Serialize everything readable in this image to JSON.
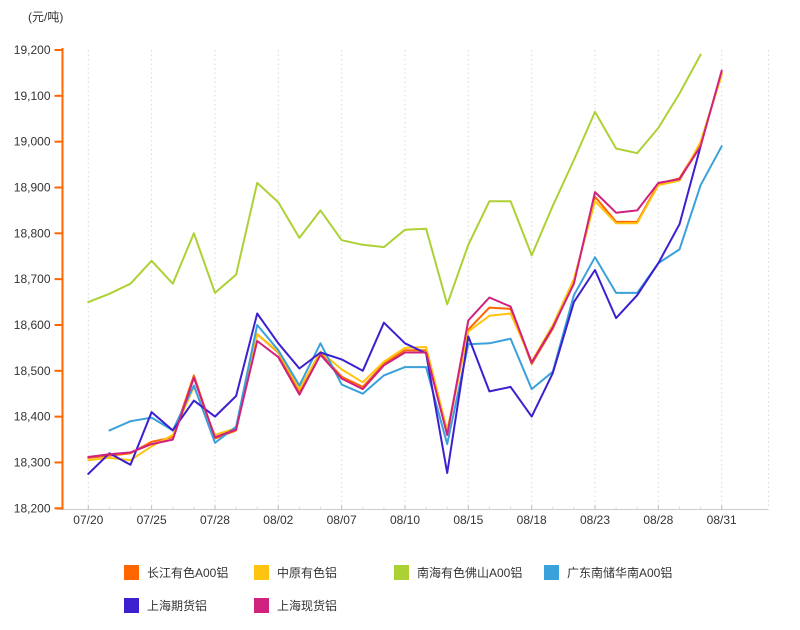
{
  "chart_data": {
    "type": "line",
    "unit_label": "(元/吨)",
    "ylabel": "元/吨",
    "xlabel": "",
    "ylim": [
      18200,
      19200
    ],
    "y_tick_step": 100,
    "y_ticks": [
      18200,
      18300,
      18400,
      18500,
      18600,
      18700,
      18800,
      18900,
      19000,
      19100,
      19200
    ],
    "y_tick_labels": [
      "18,200",
      "18,300",
      "18,400",
      "18,500",
      "18,600",
      "18,700",
      "18,800",
      "18,900",
      "19,000",
      "19,100",
      "19,200"
    ],
    "x": [
      "07/20",
      "07/21",
      "07/24",
      "07/25",
      "07/26",
      "07/27",
      "07/28",
      "07/31",
      "08/01",
      "08/02",
      "08/03",
      "08/04",
      "08/07",
      "08/08",
      "08/09",
      "08/10",
      "08/11",
      "08/14",
      "08/15",
      "08/16",
      "08/17",
      "08/18",
      "08/21",
      "08/22",
      "08/23",
      "08/24",
      "08/25",
      "08/28",
      "08/29",
      "08/30",
      "08/31"
    ],
    "x_label_indices": [
      0,
      3,
      6,
      9,
      12,
      15,
      18,
      21,
      24,
      27,
      30
    ],
    "x_tick_labels": [
      "07/20",
      "07/25",
      "07/28",
      "08/02",
      "08/07",
      "08/10",
      "08/15",
      "08/18",
      "08/23",
      "08/28",
      "08/31"
    ],
    "grid": "vertical-dotted",
    "legend_position": "bottom",
    "axis_colors": {
      "y_axis": "#FF6600",
      "x_axis": "#CCCCCC",
      "gridline": "#D9D9D9",
      "tick_text": "#333333"
    },
    "series": [
      {
        "name": "长江有色A00铝",
        "color": "#FF6600",
        "values": [
          18310,
          18315,
          18320,
          18345,
          18355,
          18490,
          18352,
          18370,
          18580,
          18540,
          18452,
          18538,
          18487,
          18465,
          18515,
          18545,
          18545,
          18365,
          18590,
          18638,
          18635,
          18515,
          18592,
          18695,
          18880,
          18825,
          18825,
          18908,
          18920,
          18995,
          19150
        ]
      },
      {
        "name": "中原有色铝",
        "color": "#FFC410",
        "values": [
          18305,
          18310,
          18305,
          18335,
          18360,
          18465,
          18360,
          18375,
          18580,
          18542,
          18460,
          18542,
          18503,
          18475,
          18520,
          18550,
          18552,
          18370,
          18586,
          18620,
          18625,
          18520,
          18600,
          18700,
          18870,
          18822,
          18822,
          18905,
          18915,
          19000,
          19145
        ]
      },
      {
        "name": "南海有色佛山A00铝",
        "color": "#ADD135",
        "values": [
          18650,
          18668,
          18690,
          18740,
          18690,
          18800,
          18670,
          18710,
          18910,
          18868,
          18790,
          18850,
          18785,
          18775,
          18770,
          18808,
          18810,
          18645,
          18775,
          18870,
          18870,
          18752,
          18860,
          18960,
          19065,
          18985,
          18975,
          19030,
          19105,
          19190,
          null
        ]
      },
      {
        "name": "广东南储华南A00铝",
        "color": "#3BA1DB",
        "values": [
          null,
          18370,
          18390,
          18398,
          18370,
          18468,
          18343,
          18378,
          18600,
          18545,
          18468,
          18560,
          18470,
          18450,
          18490,
          18508,
          18508,
          18340,
          18558,
          18560,
          18570,
          18460,
          18498,
          18665,
          18748,
          18670,
          18670,
          18735,
          18765,
          18905,
          18990
        ]
      },
      {
        "name": "上海期货铝",
        "color": "#3C20D0",
        "values": [
          18275,
          18320,
          18295,
          18410,
          18370,
          18435,
          18400,
          18445,
          18625,
          18560,
          18505,
          18540,
          18525,
          18500,
          18605,
          18560,
          18538,
          18277,
          18575,
          18455,
          18465,
          18400,
          18495,
          18650,
          18720,
          18615,
          18665,
          18735,
          18820,
          18990,
          null
        ]
      },
      {
        "name": "上海现货铝",
        "color": "#D0217E",
        "values": [
          18312,
          18318,
          18322,
          18340,
          18350,
          18485,
          18355,
          18372,
          18565,
          18530,
          18448,
          18535,
          18483,
          18460,
          18512,
          18540,
          18540,
          18360,
          18610,
          18660,
          18640,
          18518,
          18595,
          18690,
          18890,
          18845,
          18850,
          18910,
          18918,
          18990,
          19155
        ]
      }
    ]
  },
  "legend": {
    "rows": [
      [
        "长江有色A00铝",
        "中原有色铝",
        "南海有色佛山A00铝",
        "广东南储华南A00铝"
      ],
      [
        "上海期货铝",
        "上海现货铝"
      ]
    ]
  }
}
